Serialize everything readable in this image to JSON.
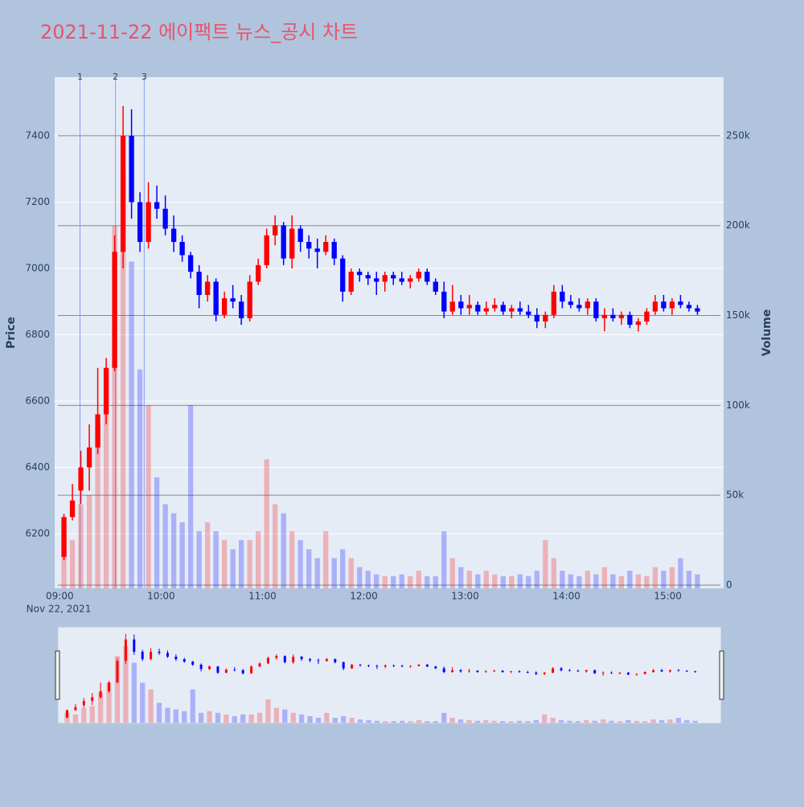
{
  "chart_data": {
    "type": "candlestick",
    "title": "2021-11-22 에이팩트 뉴스_공시 차트",
    "x_date_label": "Nov 22, 2021",
    "yaxis_title": "Price",
    "y2axis_title": "Volume",
    "x": [
      "09:00",
      "09:05",
      "09:10",
      "09:15",
      "09:20",
      "09:25",
      "09:30",
      "09:35",
      "09:40",
      "09:45",
      "09:50",
      "09:55",
      "10:00",
      "10:05",
      "10:10",
      "10:15",
      "10:20",
      "10:25",
      "10:30",
      "10:35",
      "10:40",
      "10:45",
      "10:50",
      "10:55",
      "11:00",
      "11:05",
      "11:10",
      "11:15",
      "11:20",
      "11:25",
      "11:30",
      "11:35",
      "11:40",
      "11:45",
      "11:50",
      "11:55",
      "12:00",
      "12:05",
      "12:10",
      "12:15",
      "12:20",
      "12:25",
      "12:30",
      "12:35",
      "12:40",
      "12:45",
      "12:50",
      "12:55",
      "13:00",
      "13:05",
      "13:10",
      "13:15",
      "13:20",
      "13:25",
      "13:30",
      "13:35",
      "13:40",
      "13:45",
      "13:50",
      "13:55",
      "14:00",
      "14:05",
      "14:10",
      "14:15",
      "14:20",
      "14:25",
      "14:30",
      "14:35",
      "14:40",
      "14:45",
      "14:50",
      "14:55",
      "15:00",
      "15:05",
      "15:10",
      "15:15"
    ],
    "open": [
      6130,
      6250,
      6330,
      6400,
      6460,
      6560,
      6700,
      7050,
      7400,
      7200,
      7080,
      7200,
      7180,
      7120,
      7080,
      7040,
      6990,
      6920,
      6960,
      6860,
      6910,
      6900,
      6850,
      6960,
      7010,
      7100,
      7130,
      7030,
      7120,
      7080,
      7060,
      7050,
      7080,
      7030,
      6930,
      6990,
      6980,
      6970,
      6960,
      6980,
      6970,
      6960,
      6970,
      6990,
      6960,
      6930,
      6870,
      6900,
      6880,
      6890,
      6870,
      6880,
      6890,
      6870,
      6880,
      6870,
      6860,
      6840,
      6860,
      6930,
      6900,
      6890,
      6880,
      6900,
      6850,
      6860,
      6850,
      6860,
      6830,
      6840,
      6870,
      6900,
      6880,
      6900,
      6890,
      6880
    ],
    "high": [
      6260,
      6350,
      6450,
      6530,
      6700,
      6730,
      7100,
      7490,
      7480,
      7230,
      7260,
      7250,
      7220,
      7160,
      7100,
      7050,
      7010,
      6980,
      6970,
      6930,
      6950,
      6920,
      6980,
      7030,
      7120,
      7160,
      7140,
      7160,
      7130,
      7100,
      7090,
      7100,
      7090,
      7040,
      7000,
      7000,
      6990,
      6990,
      6990,
      6990,
      6990,
      6980,
      7000,
      7000,
      6970,
      6960,
      6950,
      6920,
      6920,
      6900,
      6900,
      6910,
      6900,
      6890,
      6900,
      6890,
      6880,
      6870,
      6950,
      6950,
      6920,
      6910,
      6910,
      6910,
      6880,
      6880,
      6870,
      6870,
      6850,
      6880,
      6920,
      6920,
      6910,
      6920,
      6900,
      6890
    ],
    "low": [
      6120,
      6240,
      6290,
      6330,
      6440,
      6530,
      6690,
      7000,
      7150,
      7050,
      7060,
      7150,
      7100,
      7050,
      7020,
      6970,
      6880,
      6900,
      6840,
      6850,
      6880,
      6830,
      6840,
      6950,
      7000,
      7070,
      7010,
      7000,
      7050,
      7030,
      7000,
      7040,
      7010,
      6900,
      6920,
      6960,
      6950,
      6920,
      6930,
      6950,
      6950,
      6940,
      6960,
      6950,
      6920,
      6850,
      6860,
      6860,
      6860,
      6860,
      6860,
      6870,
      6860,
      6850,
      6860,
      6850,
      6820,
      6820,
      6850,
      6880,
      6880,
      6870,
      6860,
      6840,
      6810,
      6840,
      6830,
      6820,
      6810,
      6830,
      6860,
      6870,
      6860,
      6880,
      6870,
      6860
    ],
    "close": [
      6250,
      6300,
      6400,
      6460,
      6560,
      6700,
      7050,
      7400,
      7200,
      7080,
      7200,
      7180,
      7120,
      7080,
      7040,
      6990,
      6920,
      6960,
      6860,
      6910,
      6900,
      6850,
      6960,
      7010,
      7100,
      7130,
      7030,
      7120,
      7080,
      7060,
      7050,
      7080,
      7030,
      6930,
      6990,
      6980,
      6970,
      6960,
      6980,
      6970,
      6960,
      6970,
      6990,
      6960,
      6930,
      6870,
      6900,
      6880,
      6890,
      6870,
      6880,
      6890,
      6870,
      6880,
      6870,
      6860,
      6840,
      6860,
      6930,
      6900,
      6890,
      6880,
      6900,
      6850,
      6860,
      6850,
      6860,
      6830,
      6840,
      6870,
      6900,
      6880,
      6900,
      6890,
      6880,
      6870
    ],
    "volume": [
      30000,
      25000,
      45000,
      50000,
      90000,
      120000,
      200000,
      230000,
      180000,
      120000,
      100000,
      60000,
      45000,
      40000,
      35000,
      100000,
      30000,
      35000,
      30000,
      25000,
      20000,
      25000,
      25000,
      30000,
      70000,
      45000,
      40000,
      30000,
      25000,
      20000,
      15000,
      30000,
      15000,
      20000,
      15000,
      10000,
      8000,
      6000,
      5000,
      5000,
      6000,
      5000,
      8000,
      5000,
      5000,
      30000,
      15000,
      10000,
      8000,
      6000,
      8000,
      6000,
      5000,
      5000,
      6000,
      5000,
      8000,
      25000,
      15000,
      8000,
      6000,
      5000,
      8000,
      6000,
      10000,
      6000,
      5000,
      8000,
      6000,
      5000,
      10000,
      8000,
      10000,
      15000,
      8000,
      6000
    ],
    "up_color": "#ff0000",
    "down_color": "#0000ff",
    "xlim": [
      "08:57",
      "15:33"
    ],
    "xticks": [
      "09:00",
      "10:00",
      "11:00",
      "12:00",
      "13:00",
      "14:00",
      "15:00"
    ],
    "ylim": [
      6035,
      7577
    ],
    "yticks": [
      6200,
      6400,
      6600,
      6800,
      7000,
      7200,
      7400
    ],
    "y2lim": [
      -1800,
      282600
    ],
    "y2ticks": [
      0,
      {
        "value": 50000,
        "label": "50k"
      },
      {
        "value": 100000,
        "label": "100k"
      },
      {
        "value": 150000,
        "label": "150k"
      },
      {
        "value": 200000,
        "label": "200k"
      },
      {
        "value": 250000,
        "label": "250k"
      }
    ],
    "annotations": [
      {
        "x": "09:12",
        "label": "1"
      },
      {
        "x": "09:33",
        "label": "2"
      },
      {
        "x": "09:50",
        "label": "3"
      }
    ],
    "rangeslider": true
  }
}
